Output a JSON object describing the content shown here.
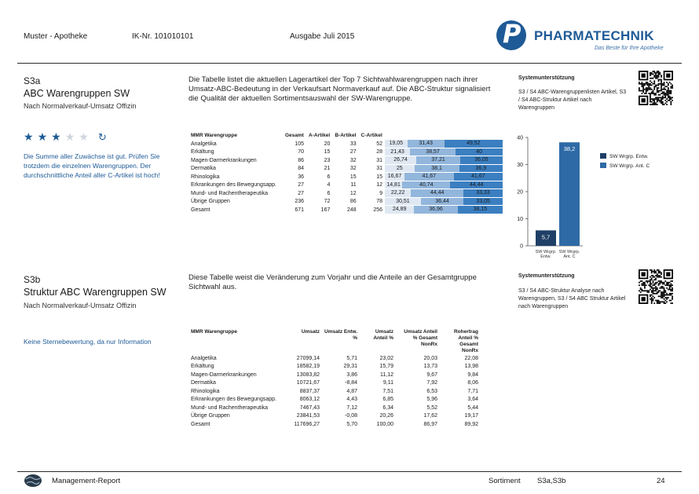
{
  "header": {
    "pharmacy": "Muster - Apotheke",
    "ik": "IK-Nr. 101010101",
    "edition": "Ausgabe Juli 2015",
    "brand": "PHARMATECHNIK",
    "logo_letter": "P",
    "slogan": "Das Beste für Ihre Apotheke",
    "brand_color": "#1e5a96"
  },
  "s3a": {
    "id": "S3a",
    "title": "ABC Warengruppen SW",
    "subtitle": "Nach Normalverkauf-Umsatz Offizin",
    "description": "Die Tabelle listet die aktuellen Lagerartikel der Top 7 Sichtwahlwarengruppen nach ihrer Umsatz-ABC-Bedeutung in der Verkaufsart Normaverkauf auf. Die ABC-Struktur signalisiert die Qualität der aktuellen Sortimentsauswahl der SW-Warengruppe.",
    "support_title": "Systemunterstützung",
    "support_text": "S3 / S4 ABC-Warengruppenlisten Artikel, S3 / S4 ABC-Struktur Artikel nach Warengruppen",
    "rating": 3,
    "rating_max": 5,
    "rating_note": "Die Summe aller Zuwächse ist gut. Prüfen Sie trotzdem die einzelnen Warengruppen. Der durchschnittliche Anteil aller C-Artikel ist hoch!",
    "columns": [
      "MMR Warengruppe",
      "Gesamt",
      "A-Artikel",
      "B-Artikel",
      "C-Artikel"
    ],
    "rows": [
      {
        "name": "Analgetika",
        "gesamt": "105",
        "a": "20",
        "b": "33",
        "c": "52",
        "pa": "19,05",
        "pb": "31,43",
        "pc": "49,52"
      },
      {
        "name": "Erkältung",
        "gesamt": "70",
        "a": "15",
        "b": "27",
        "c": "28",
        "pa": "21,43",
        "pb": "38,57",
        "pc": "40"
      },
      {
        "name": "Magen-Darmerkrankungen",
        "gesamt": "86",
        "a": "23",
        "b": "32",
        "c": "31",
        "pa": "26,74",
        "pb": "37,21",
        "pc": "36,05"
      },
      {
        "name": "Dermatika",
        "gesamt": "84",
        "a": "21",
        "b": "32",
        "c": "31",
        "pa": "25",
        "pb": "38,1",
        "pc": "36,9"
      },
      {
        "name": "Rhinologika",
        "gesamt": "36",
        "a": "6",
        "b": "15",
        "c": "15",
        "pa": "16,67",
        "pb": "41,67",
        "pc": "41,67"
      },
      {
        "name": "Erkrankungen des Bewegungsapp.",
        "gesamt": "27",
        "a": "4",
        "b": "11",
        "c": "12",
        "pa": "14,81",
        "pb": "40,74",
        "pc": "44,44"
      },
      {
        "name": "Mund- und Rachentherapeutika",
        "gesamt": "27",
        "a": "6",
        "b": "12",
        "c": "9",
        "pa": "22,22",
        "pb": "44,44",
        "pc": "33,33"
      },
      {
        "name": "Übrige Gruppen",
        "gesamt": "236",
        "a": "72",
        "b": "86",
        "c": "78",
        "pa": "30,51",
        "pb": "36,44",
        "pc": "33,05"
      },
      {
        "name": "Gesamt",
        "gesamt": "671",
        "a": "167",
        "b": "248",
        "c": "256",
        "pa": "24,89",
        "pb": "36,96",
        "pc": "38,15"
      }
    ],
    "bar_colors": {
      "a": "#dfe8f2",
      "b": "#92b6dc",
      "c": "#3b7fc1"
    }
  },
  "chart_data": {
    "type": "bar",
    "categories": [
      "SW Wrgrp. Entw.",
      "SW Wrgrp. Ant. C"
    ],
    "values": [
      5.7,
      38.2
    ],
    "value_labels": [
      "5,7",
      "38,2"
    ],
    "ylim": [
      0,
      40
    ],
    "yticks": [
      "0",
      "10",
      "20",
      "30",
      "40"
    ],
    "legend": [
      "SW Wrgrp. Entw.",
      "SW Wrgrp. Ant. C"
    ],
    "colors": [
      "#1f3f66",
      "#2e6aa6"
    ],
    "legend_position": "right"
  },
  "s3b": {
    "id": "S3b",
    "title": "Struktur ABC Warengruppen SW",
    "subtitle": "Nach Normalverkauf-Umsatz Offizin",
    "description": "Diese Tabelle weist die Veränderung zum Vorjahr und die Anteile an der Gesamtgruppe Sichtwahl aus.",
    "support_title": "Systemunterstützung",
    "support_text": "S3 / S4 ABC-Struktur Analyse nach Warengruppen, S3 / S4 ABC Struktur Artikel nach Warengruppen",
    "rating_note": "Keine Sternebewertung, da nur Information",
    "columns": [
      "MMR Warengruppe",
      "Umsatz",
      "Umsatz Entw. %",
      "Umsatz Anteil %",
      "Umsatz Anteil % Gesamt NonRx",
      "Rohertrag Anteil % Gesamt NonRx"
    ],
    "rows": [
      [
        "Analgetika",
        "27099,14",
        "5,71",
        "23,02",
        "20,03",
        "22,08"
      ],
      [
        "Erkältung",
        "18582,19",
        "29,31",
        "15,79",
        "13,73",
        "13,98"
      ],
      [
        "Magen-Darmerkrankungen",
        "13083,82",
        "3,86",
        "11,12",
        "9,67",
        "9,84"
      ],
      [
        "Dermatika",
        "10721,67",
        "-8,84",
        "9,11",
        "7,92",
        "8,06"
      ],
      [
        "Rhinologika",
        "8837,37",
        "4,87",
        "7,51",
        "6,53",
        "7,71"
      ],
      [
        "Erkrankungen des Bewegungsapp.",
        "8063,12",
        "4,43",
        "6,85",
        "5,96",
        "3,64"
      ],
      [
        "Mund- und Rachentherapeutika",
        "7467,43",
        "7,12",
        "6,34",
        "5,52",
        "5,44"
      ],
      [
        "Übrige Gruppen",
        "23841,53",
        "-0,08",
        "20,26",
        "17,62",
        "19,17"
      ],
      [
        "Gesamt",
        "117696,27",
        "5,70",
        "100,00",
        "86,97",
        "89,92"
      ]
    ]
  },
  "footer": {
    "report": "Management-Report",
    "label": "Sortiment",
    "value": "S3a,S3b",
    "page": "24"
  }
}
